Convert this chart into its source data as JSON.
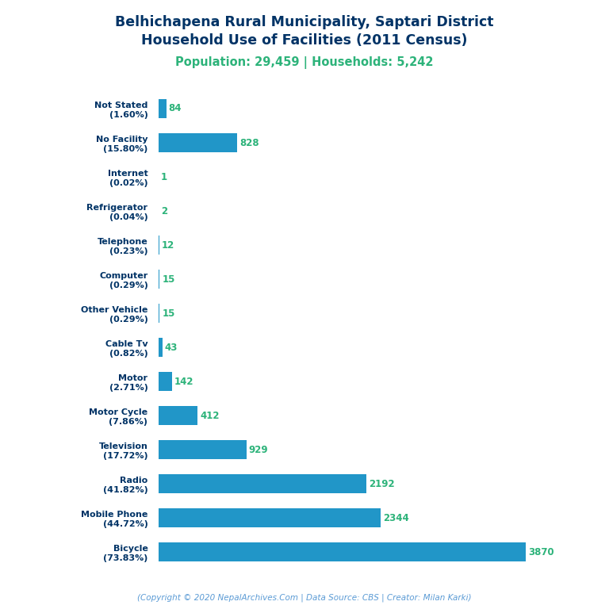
{
  "title_line1": "Belhichapena Rural Municipality, Saptari District",
  "title_line2": "Household Use of Facilities (2011 Census)",
  "subtitle": "Population: 29,459 | Households: 5,242",
  "footer": "(Copyright © 2020 NepalArchives.Com | Data Source: CBS | Creator: Milan Karki)",
  "categories": [
    "Not Stated\n(1.60%)",
    "No Facility\n(15.80%)",
    "Internet\n(0.02%)",
    "Refrigerator\n(0.04%)",
    "Telephone\n(0.23%)",
    "Computer\n(0.29%)",
    "Other Vehicle\n(0.29%)",
    "Cable Tv\n(0.82%)",
    "Motor\n(2.71%)",
    "Motor Cycle\n(7.86%)",
    "Television\n(17.72%)",
    "Radio\n(41.82%)",
    "Mobile Phone\n(44.72%)",
    "Bicycle\n(73.83%)"
  ],
  "values": [
    84,
    828,
    1,
    2,
    12,
    15,
    15,
    43,
    142,
    412,
    929,
    2192,
    2344,
    3870
  ],
  "bar_color": "#2196C8",
  "label_color": "#2db37a",
  "title_color": "#003366",
  "subtitle_color": "#2db37a",
  "footer_color": "#5b9bd5",
  "background_color": "#ffffff",
  "xlim": [
    0,
    4300
  ]
}
